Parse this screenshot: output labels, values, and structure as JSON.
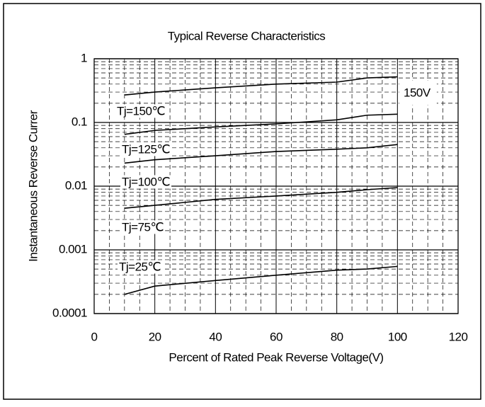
{
  "chart_data": {
    "type": "line",
    "title": "Typical Reverse Characteristics",
    "x_label": "Percent of Rated Peak Reverse Voltage(V)",
    "y_label": "Instantaneous Reverse Currer",
    "annotation": "150V",
    "x": [
      10,
      20,
      40,
      60,
      80,
      90,
      100
    ],
    "series": [
      {
        "name": "Tj=150℃",
        "color": "#000000",
        "values": [
          0.27,
          0.3,
          0.35,
          0.4,
          0.43,
          0.5,
          0.52
        ]
      },
      {
        "name": "Tj=125℃",
        "color": "#000000",
        "values": [
          0.065,
          0.075,
          0.085,
          0.095,
          0.11,
          0.13,
          0.135
        ]
      },
      {
        "name": "Tj=100℃",
        "color": "#000000",
        "values": [
          0.023,
          0.026,
          0.03,
          0.035,
          0.038,
          0.04,
          0.045
        ]
      },
      {
        "name": "Tj=75℃",
        "color": "#000000",
        "values": [
          0.0045,
          0.005,
          0.0062,
          0.007,
          0.008,
          0.0088,
          0.0095
        ]
      },
      {
        "name": "Tj=25℃",
        "color": "#000000",
        "values": [
          0.0002,
          0.00027,
          0.00033,
          0.0004,
          0.00048,
          0.0005,
          0.00055
        ]
      }
    ],
    "xlim": [
      0,
      120
    ],
    "xticks": [
      0,
      20,
      40,
      60,
      80,
      100,
      120
    ],
    "ylim": [
      0.0001,
      1
    ],
    "yticks": [
      0.0001,
      0.001,
      0.01,
      0.1,
      1
    ],
    "log_y": true,
    "grid": true
  }
}
